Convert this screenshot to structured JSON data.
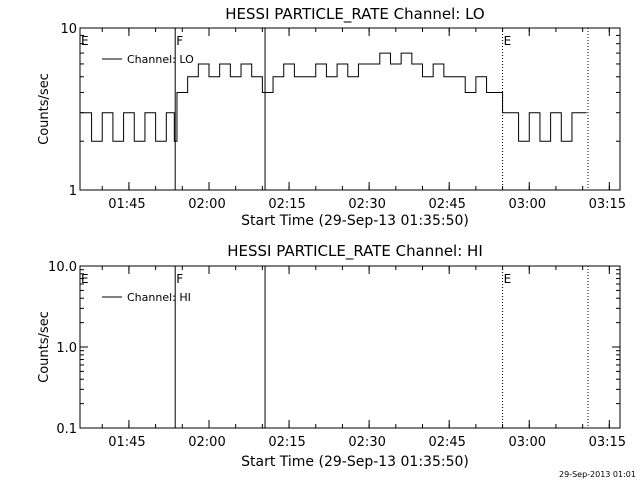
{
  "chart_data": [
    {
      "type": "line",
      "title": "HESSI PARTICLE_RATE Channel: LO",
      "xlabel": "Start Time (29-Sep-13 01:35:50)",
      "ylabel": "Counts/sec",
      "yscale": "log",
      "ylim": [
        1,
        10
      ],
      "ytick_labels": [
        "1",
        "10"
      ],
      "xlim": [
        "01:35:50",
        "03:17:00"
      ],
      "xtick_labels": [
        "01:45",
        "02:00",
        "02:15",
        "02:30",
        "02:45",
        "03:00",
        "03:15"
      ],
      "legend": "top-left",
      "series": [
        {
          "name": "Channel: LO",
          "color": "#000000",
          "x": [
            "01:36:00",
            "01:38:00",
            "01:40:00",
            "01:42:00",
            "01:44:00",
            "01:46:00",
            "01:48:00",
            "01:50:00",
            "01:52:00",
            "01:53:30",
            "01:54:00",
            "01:56:00",
            "01:58:00",
            "02:00:00",
            "02:02:00",
            "02:04:00",
            "02:06:00",
            "02:08:00",
            "02:10:00",
            "02:12:00",
            "02:14:00",
            "02:16:00",
            "02:18:00",
            "02:20:00",
            "02:22:00",
            "02:24:00",
            "02:26:00",
            "02:28:00",
            "02:30:00",
            "02:32:00",
            "02:34:00",
            "02:36:00",
            "02:38:00",
            "02:40:00",
            "02:42:00",
            "02:44:00",
            "02:46:00",
            "02:48:00",
            "02:50:00",
            "02:52:00",
            "02:54:00",
            "02:55:00",
            "02:56:00",
            "02:58:00",
            "03:00:00",
            "03:02:00",
            "03:04:00",
            "03:06:00",
            "03:08:00",
            "03:10:00"
          ],
          "y": [
            3,
            2,
            3,
            2,
            3,
            2,
            3,
            2,
            3,
            2,
            4,
            5,
            6,
            5,
            6,
            5,
            6,
            5,
            4,
            5,
            6,
            5,
            5,
            6,
            5,
            6,
            5,
            6,
            6,
            7,
            6,
            7,
            6,
            5,
            6,
            5,
            5,
            4,
            5,
            4,
            4,
            3,
            3,
            2,
            3,
            2,
            3,
            2,
            3,
            3
          ]
        }
      ],
      "markers": [
        {
          "label": "E",
          "x": "01:35:50",
          "style": "none"
        },
        {
          "label": "F",
          "x": "01:53:40",
          "style": "solid"
        },
        {
          "label": "",
          "x": "02:10:30",
          "style": "solid"
        },
        {
          "label": "E",
          "x": "02:55:00",
          "style": "dotted"
        },
        {
          "label": "",
          "x": "03:11:00",
          "style": "dotted"
        }
      ]
    },
    {
      "type": "line",
      "title": "HESSI PARTICLE_RATE Channel: HI",
      "xlabel": "Start Time (29-Sep-13 01:35:50)",
      "ylabel": "Counts/sec",
      "yscale": "log",
      "ylim": [
        0.1,
        10
      ],
      "ytick_labels": [
        "0.1",
        "1.0",
        "10.0"
      ],
      "xlim": [
        "01:35:50",
        "03:17:00"
      ],
      "xtick_labels": [
        "01:45",
        "02:00",
        "02:15",
        "02:30",
        "02:45",
        "03:00",
        "03:15"
      ],
      "legend": "top-left",
      "series": [
        {
          "name": "Channel: HI",
          "color": "#000000",
          "x": [],
          "y": []
        }
      ],
      "markers": [
        {
          "label": "E",
          "x": "01:35:50",
          "style": "none"
        },
        {
          "label": "F",
          "x": "01:53:40",
          "style": "solid"
        },
        {
          "label": "",
          "x": "02:10:30",
          "style": "solid"
        },
        {
          "label": "E",
          "x": "02:55:00",
          "style": "dotted"
        },
        {
          "label": "",
          "x": "03:11:00",
          "style": "dotted"
        }
      ]
    }
  ],
  "footer": {
    "timestamp": "29-Sep-2013 01:01"
  }
}
